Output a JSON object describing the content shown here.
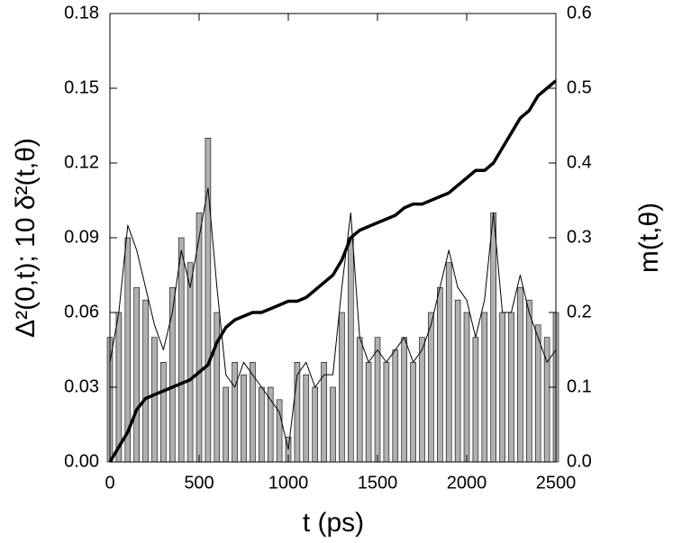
{
  "chart_data": {
    "type": "bar-line",
    "x_label": "t (ps)",
    "y_label": "Δ²(0,t); 10 δ²(t,θ)",
    "y2_label": "m(t,θ)",
    "x": [
      0,
      50,
      100,
      150,
      200,
      250,
      300,
      350,
      400,
      450,
      500,
      550,
      600,
      650,
      700,
      750,
      800,
      850,
      900,
      950,
      1000,
      1050,
      1100,
      1150,
      1200,
      1250,
      1300,
      1350,
      1400,
      1450,
      1500,
      1550,
      1600,
      1650,
      1700,
      1750,
      1800,
      1850,
      1900,
      1950,
      2000,
      2050,
      2100,
      2150,
      2200,
      2250,
      2300,
      2350,
      2400,
      2450,
      2500
    ],
    "xlim": [
      0,
      2500
    ],
    "xticks": [
      0,
      500,
      1000,
      1500,
      2000,
      2500
    ],
    "ylim": [
      0,
      0.18
    ],
    "yticks": [
      {
        "value": 0,
        "label": "0.00"
      },
      {
        "value": 0.03,
        "label": "0.03"
      },
      {
        "value": 0.06,
        "label": "0.06"
      },
      {
        "value": 0.09,
        "label": "0.09"
      },
      {
        "value": 0.12,
        "label": "0.12"
      },
      {
        "value": 0.15,
        "label": "0.15"
      },
      {
        "value": 0.18,
        "label": "0.18"
      }
    ],
    "y2lim": [
      0,
      0.6
    ],
    "y2ticks": [
      {
        "value": 0,
        "label": "0.0"
      },
      {
        "value": 0.1,
        "label": "0.1"
      },
      {
        "value": 0.2,
        "label": "0.2"
      },
      {
        "value": 0.3,
        "label": "0.3"
      },
      {
        "value": 0.4,
        "label": "0.4"
      },
      {
        "value": 0.5,
        "label": "0.5"
      },
      {
        "value": 0.6,
        "label": "0.6"
      }
    ],
    "series": [
      {
        "kind": "bar",
        "color": "#b0b0b0",
        "values": [
          0.05,
          0.06,
          0.09,
          0.07,
          0.065,
          0.05,
          0.04,
          0.07,
          0.09,
          0.08,
          0.1,
          0.13,
          0.06,
          0.03,
          0.04,
          0.035,
          0.04,
          0.03,
          0.03,
          0.025,
          0.01,
          0.04,
          0.035,
          0.03,
          0.04,
          0.03,
          0.06,
          0.09,
          0.05,
          0.04,
          0.05,
          0.04,
          0.045,
          0.05,
          0.04,
          0.05,
          0.06,
          0.07,
          0.08,
          0.065,
          0.06,
          0.05,
          0.06,
          0.1,
          0.06,
          0.06,
          0.07,
          0.065,
          0.055,
          0.05,
          0.06
        ]
      },
      {
        "kind": "line",
        "color": "#000000",
        "values": [
          0.04,
          0.06,
          0.095,
          0.085,
          0.07,
          0.055,
          0.045,
          0.06,
          0.085,
          0.07,
          0.09,
          0.11,
          0.07,
          0.035,
          0.03,
          0.04,
          0.035,
          0.03,
          0.025,
          0.02,
          0.005,
          0.035,
          0.04,
          0.03,
          0.035,
          0.035,
          0.07,
          0.1,
          0.05,
          0.04,
          0.045,
          0.04,
          0.045,
          0.05,
          0.04,
          0.045,
          0.055,
          0.07,
          0.085,
          0.07,
          0.065,
          0.05,
          0.065,
          0.1,
          0.06,
          0.06,
          0.075,
          0.06,
          0.05,
          0.04,
          0.045
        ]
      },
      {
        "kind": "line",
        "axis": "y2",
        "color": "#000000",
        "values": [
          0,
          0.02,
          0.04,
          0.07,
          0.085,
          0.09,
          0.095,
          0.1,
          0.105,
          0.11,
          0.12,
          0.13,
          0.16,
          0.18,
          0.19,
          0.195,
          0.2,
          0.2,
          0.205,
          0.21,
          0.215,
          0.215,
          0.22,
          0.23,
          0.24,
          0.25,
          0.27,
          0.3,
          0.31,
          0.315,
          0.32,
          0.325,
          0.33,
          0.34,
          0.345,
          0.345,
          0.35,
          0.355,
          0.36,
          0.37,
          0.38,
          0.39,
          0.39,
          0.4,
          0.42,
          0.44,
          0.46,
          0.47,
          0.49,
          0.5,
          0.51
        ]
      }
    ]
  }
}
